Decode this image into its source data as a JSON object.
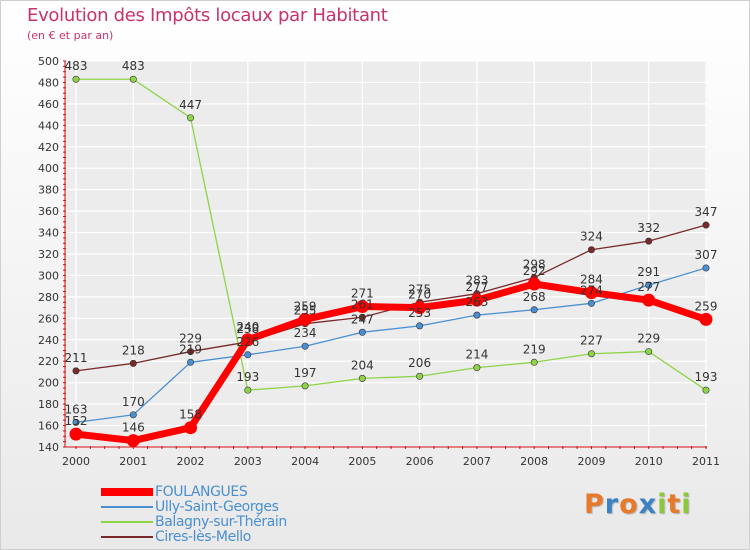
{
  "header": {
    "title": "Evolution des Impôts locaux par Habitant",
    "subtitle": "(en € et par an)"
  },
  "logo": {
    "text": "Proxiti"
  },
  "colors": {
    "title": "#c8326e",
    "axis": "#d01010",
    "grid": "#ffffff",
    "logo": [
      "#e8792a",
      "#3b82c4",
      "#e8792a",
      "#3b82c4",
      "#8bc83c",
      "#e8792a",
      "#8bc83c"
    ]
  },
  "chart_data": {
    "type": "line",
    "title": "Evolution des Impôts locaux par Habitant",
    "subtitle": "(en € et par an)",
    "xlabel": "",
    "ylabel": "",
    "ylim": [
      140,
      500
    ],
    "ytick_step": 20,
    "yticks": [
      140,
      160,
      180,
      200,
      220,
      240,
      260,
      280,
      300,
      320,
      340,
      360,
      380,
      400,
      420,
      440,
      460,
      480,
      500
    ],
    "x": [
      "2000",
      "2001",
      "2002",
      "2003",
      "2004",
      "2005",
      "2006",
      "2007",
      "2008",
      "2009",
      "2010",
      "2011"
    ],
    "grid": true,
    "legend_position": "bottom-left",
    "series": [
      {
        "name": "FOULANGUES",
        "color": "#ff0000",
        "emphasis": true,
        "values": [
          152,
          146,
          158,
          240,
          259,
          271,
          270,
          277,
          292,
          284,
          277,
          259
        ],
        "labels": [
          "152",
          "146",
          "158",
          "240",
          "259",
          "271",
          "270",
          "277",
          "292",
          "284",
          "277",
          "259"
        ]
      },
      {
        "name": "Ully-Saint-Georges",
        "color": "#4a8fd1",
        "emphasis": false,
        "values": [
          163,
          170,
          219,
          226,
          234,
          247,
          253,
          263,
          268,
          274,
          291,
          307
        ],
        "labels": [
          "163",
          "170",
          "219",
          "226",
          "234",
          "247",
          "253",
          "263",
          "268",
          "274",
          "291",
          "307"
        ]
      },
      {
        "name": "Balagny-sur-Thérain",
        "color": "#8ed448",
        "emphasis": false,
        "values": [
          483,
          483,
          447,
          193,
          197,
          204,
          206,
          214,
          219,
          227,
          229,
          193
        ],
        "labels": [
          "483",
          "483",
          "447",
          "193",
          "197",
          "204",
          "206",
          "214",
          "219",
          "227",
          "229",
          "193"
        ]
      },
      {
        "name": "Cires-lès-Mello",
        "color": "#7a2a2a",
        "emphasis": false,
        "values": [
          211,
          218,
          229,
          238,
          255,
          261,
          275,
          283,
          298,
          324,
          332,
          347
        ],
        "labels": [
          "211",
          "218",
          "229",
          "238",
          "255",
          "261",
          "275",
          "283",
          "298",
          "324",
          "332",
          "347"
        ]
      }
    ]
  }
}
